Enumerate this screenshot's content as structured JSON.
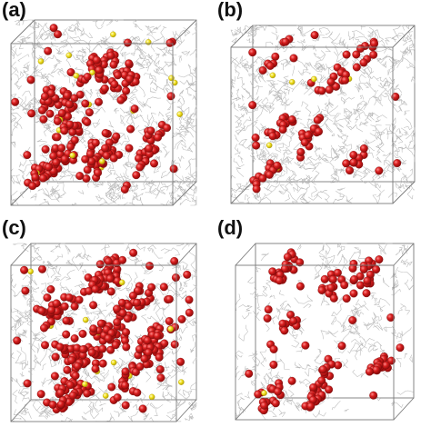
{
  "figure": {
    "panels": [
      {
        "id": "a",
        "label": "(a)",
        "red_count": 230,
        "yellow_count": 18,
        "network": "dense",
        "seed": 11
      },
      {
        "id": "b",
        "label": "(b)",
        "red_count": 95,
        "yellow_count": 6,
        "network": "dense",
        "seed": 23
      },
      {
        "id": "c",
        "label": "(c)",
        "red_count": 300,
        "yellow_count": 14,
        "network": "medium",
        "seed": 37
      },
      {
        "id": "d",
        "label": "(d)",
        "red_count": 150,
        "yellow_count": 1,
        "network": "sparse",
        "seed": 53
      }
    ],
    "colors": {
      "atom_red": "#d81e1e",
      "atom_yellow": "#f2e21c",
      "network": "#b9b9b9",
      "box": "#7a7a7a"
    }
  }
}
